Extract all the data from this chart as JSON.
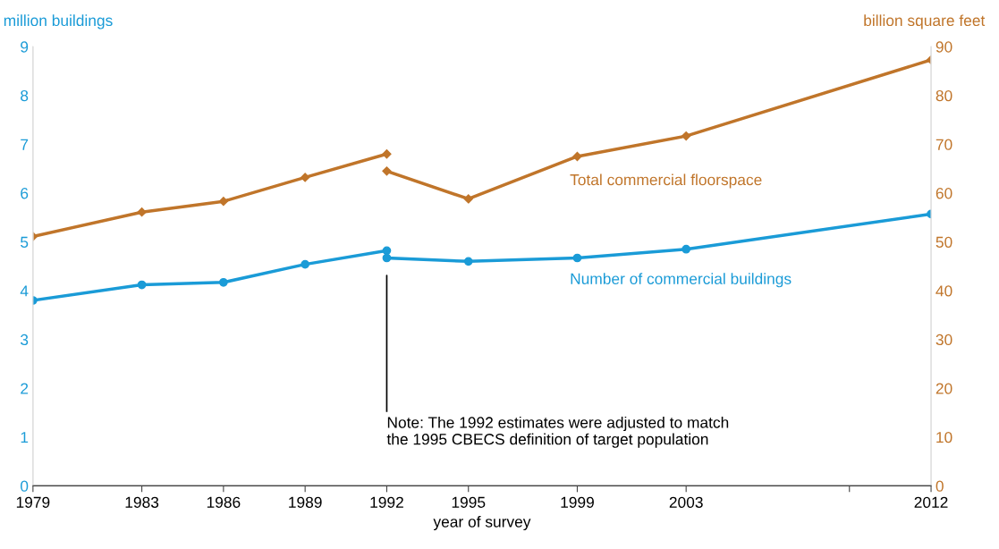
{
  "chart_data": {
    "type": "line",
    "xlabel": "year of survey",
    "ylabel": "million buildings",
    "y2label": "billion square feet",
    "xlim": [
      1979,
      2012
    ],
    "xticks": [
      1979,
      1983,
      1986,
      1989,
      1992,
      1995,
      1999,
      2003,
      {
        "value": 2009,
        "label": null
      },
      2012
    ],
    "ylim": [
      0,
      9
    ],
    "yticks": [
      0,
      1,
      2,
      3,
      4,
      5,
      6,
      7,
      8,
      9
    ],
    "y2lim": [
      0,
      90
    ],
    "y2ticks": [
      0,
      10,
      20,
      30,
      40,
      50,
      60,
      70,
      80,
      90
    ],
    "grid": false,
    "legend": false,
    "marker": "circle",
    "line_style": "solid",
    "series": [
      {
        "color": "#1a9bd7",
        "x": [
          1979,
          1983,
          1986,
          1989,
          1992
        ],
        "values": [
          3.8,
          4.12,
          4.17,
          4.54,
          4.82
        ]
      },
      {
        "name": "Number of commercial buildings",
        "color": "#1a9bd7",
        "x": [
          1992,
          1995,
          1999,
          2003,
          2012
        ],
        "values": [
          4.67,
          4.6,
          4.67,
          4.85,
          5.57
        ]
      },
      {
        "color": "#c0752a",
        "axis": "y2",
        "marker": "diamond",
        "x": [
          1979,
          1983,
          1986,
          1989,
          1992
        ],
        "values": [
          51.1,
          56.1,
          58.3,
          63.2,
          68.0
        ]
      },
      {
        "name": "Total commercial floorspace",
        "color": "#c0752a",
        "axis": "y2",
        "marker": "diamond",
        "x": [
          1992,
          1995,
          1999,
          2003,
          2012
        ],
        "values": [
          64.5,
          58.8,
          67.5,
          71.7,
          87.3
        ]
      }
    ],
    "annotations": [
      "Note: The 1992 estimates were adjusted to match\nthe 1995 CBECS definition of target population"
    ]
  }
}
